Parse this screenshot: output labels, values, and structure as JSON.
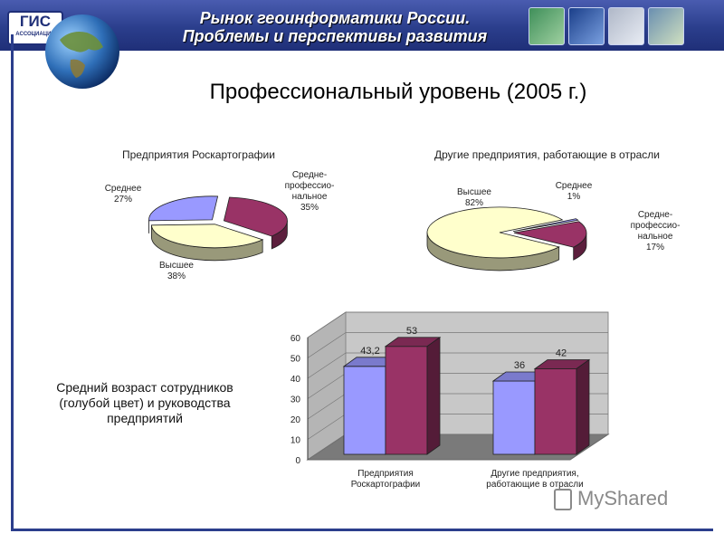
{
  "header": {
    "logo_main": "ГИС",
    "logo_sub": "АССОЦИАЦИЯ",
    "title_line1": "Рынок геоинформатики России.",
    "title_line2": "Проблемы и перспективы развития",
    "icons": [
      "map-icon",
      "device-icon",
      "buildings-icon",
      "road-map-icon"
    ]
  },
  "slide_title": "Профессиональный уровень (2005 г.)",
  "side_text": "Средний возраст сотрудников (голубой цвет) и руководства предприятий",
  "watermark": "MyShared",
  "colors": {
    "blue": "#9999ff",
    "maroon": "#993366",
    "cream": "#ffffcc"
  },
  "chart_data": [
    {
      "type": "pie",
      "title": "Предприятия Роскартографии",
      "slices": [
        {
          "name": "Средне-профессио-нальное",
          "value": 35,
          "label_lines": [
            "Средне-",
            "профессио-",
            "нальное",
            "35%"
          ],
          "color": "#993366"
        },
        {
          "name": "Высшее",
          "value": 38,
          "label_lines": [
            "Высшее",
            "38%"
          ],
          "color": "#ffffcc"
        },
        {
          "name": "Среднее",
          "value": 27,
          "label_lines": [
            "Среднее",
            "27%"
          ],
          "color": "#9999ff"
        }
      ]
    },
    {
      "type": "pie",
      "title": "Другие предприятия, работающие в отрасли",
      "slices": [
        {
          "name": "Среднее",
          "value": 1,
          "label_lines": [
            "Среднее",
            "1%"
          ],
          "color": "#9999ff"
        },
        {
          "name": "Средне-профессио-нальное",
          "value": 17,
          "label_lines": [
            "Средне-",
            "профессио-",
            "нальное",
            "17%"
          ],
          "color": "#993366"
        },
        {
          "name": "Высшее",
          "value": 82,
          "label_lines": [
            "Высшее",
            "82%"
          ],
          "color": "#ffffcc"
        }
      ]
    },
    {
      "type": "bar",
      "categories": [
        [
          "Предприятия",
          "Роскартографии"
        ],
        [
          "Другие предприятия,",
          "работающие в отрасли"
        ]
      ],
      "series": [
        {
          "values": [
            43.2,
            36
          ],
          "labels": [
            "43,2",
            "36"
          ],
          "color": "#9999ff"
        },
        {
          "values": [
            53,
            42
          ],
          "labels": [
            "53",
            "42"
          ],
          "color": "#993366"
        }
      ],
      "ylim": [
        0,
        60
      ],
      "yticks": [
        "0",
        "10",
        "20",
        "30",
        "40",
        "50",
        "60"
      ],
      "grid": true
    }
  ]
}
